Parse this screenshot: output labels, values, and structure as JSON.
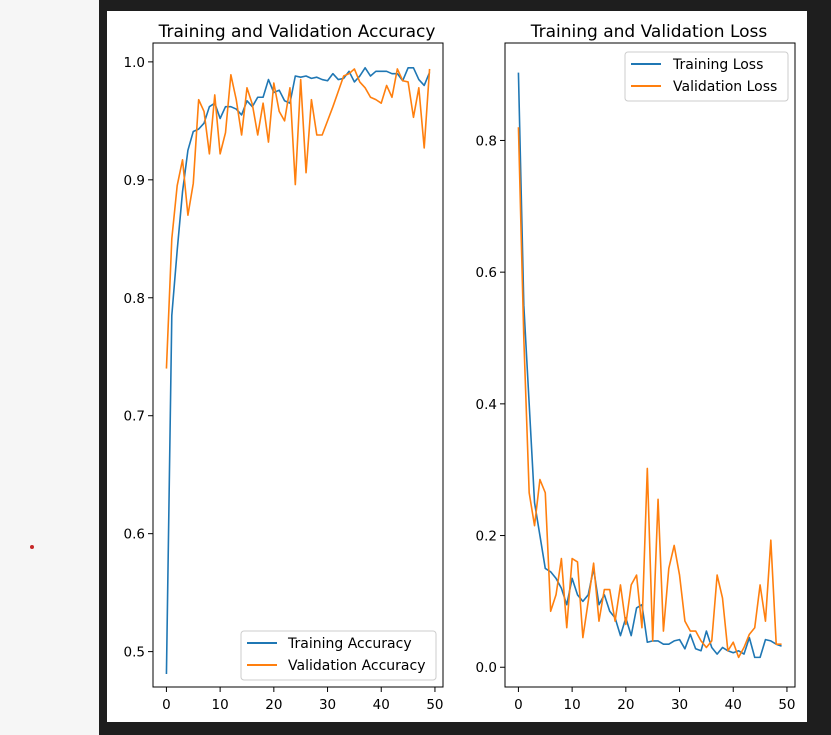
{
  "colors": {
    "training": "#1f77b4",
    "validation": "#ff7f0e",
    "figure_background": "#ffffff",
    "cell_background": "#1e1e1e"
  },
  "chart_data": [
    {
      "type": "line",
      "title": "Training and Validation Accuracy",
      "xlabel": "",
      "ylabel": "",
      "xlim": [
        -2.5,
        51.5
      ],
      "ylim": [
        0.47,
        1.016
      ],
      "xticks": [
        0,
        10,
        20,
        30,
        40,
        50
      ],
      "yticks": [
        0.5,
        0.6,
        0.7,
        0.8,
        0.9,
        1.0
      ],
      "xtick_labels": [
        "0",
        "10",
        "20",
        "30",
        "40",
        "50"
      ],
      "ytick_labels": [
        "0.5",
        "0.6",
        "0.7",
        "0.8",
        "0.9",
        "1.0"
      ],
      "legend_position": "lower-right",
      "grid": false,
      "x": [
        0,
        1,
        2,
        3,
        4,
        5,
        6,
        7,
        8,
        9,
        10,
        11,
        12,
        13,
        14,
        15,
        16,
        17,
        18,
        19,
        20,
        21,
        22,
        23,
        24,
        25,
        26,
        27,
        28,
        29,
        30,
        31,
        32,
        33,
        34,
        35,
        36,
        37,
        38,
        39,
        40,
        41,
        42,
        43,
        44,
        45,
        46,
        47,
        48,
        49
      ],
      "series": [
        {
          "name": "Training Accuracy",
          "color": "#1f77b4",
          "values": [
            0.481,
            0.785,
            0.84,
            0.89,
            0.925,
            0.941,
            0.943,
            0.948,
            0.962,
            0.965,
            0.952,
            0.962,
            0.962,
            0.96,
            0.955,
            0.967,
            0.962,
            0.97,
            0.97,
            0.985,
            0.974,
            0.976,
            0.967,
            0.965,
            0.988,
            0.987,
            0.988,
            0.986,
            0.987,
            0.985,
            0.984,
            0.99,
            0.985,
            0.986,
            0.992,
            0.983,
            0.988,
            0.995,
            0.988,
            0.992,
            0.992,
            0.992,
            0.99,
            0.99,
            0.984,
            0.995,
            0.995,
            0.985,
            0.98,
            0.991
          ]
        },
        {
          "name": "Validation Accuracy",
          "color": "#ff7f0e",
          "values": [
            0.74,
            0.85,
            0.895,
            0.917,
            0.87,
            0.897,
            0.968,
            0.958,
            0.922,
            0.972,
            0.922,
            0.94,
            0.989,
            0.968,
            0.938,
            0.978,
            0.964,
            0.938,
            0.965,
            0.932,
            0.982,
            0.958,
            0.95,
            0.978,
            0.896,
            0.985,
            0.906,
            0.968,
            0.938,
            0.938,
            0.95,
            0.962,
            0.975,
            0.988,
            0.99,
            0.994,
            0.983,
            0.978,
            0.97,
            0.968,
            0.965,
            0.98,
            0.97,
            0.994,
            0.984,
            0.983,
            0.953,
            0.978,
            0.927,
            0.994
          ]
        }
      ]
    },
    {
      "type": "line",
      "title": "Training and Validation Loss",
      "xlabel": "",
      "ylabel": "",
      "xlim": [
        -2.5,
        51.5
      ],
      "ylim": [
        -0.03,
        0.948
      ],
      "xticks": [
        0,
        10,
        20,
        30,
        40,
        50
      ],
      "yticks": [
        0.0,
        0.2,
        0.4,
        0.6,
        0.8
      ],
      "xtick_labels": [
        "0",
        "10",
        "20",
        "30",
        "40",
        "50"
      ],
      "ytick_labels": [
        "0.0",
        "0.2",
        "0.4",
        "0.6",
        "0.8"
      ],
      "legend_position": "upper-right",
      "grid": false,
      "x": [
        0,
        1,
        2,
        3,
        4,
        5,
        6,
        7,
        8,
        9,
        10,
        11,
        12,
        13,
        14,
        15,
        16,
        17,
        18,
        19,
        20,
        21,
        22,
        23,
        24,
        25,
        26,
        27,
        28,
        29,
        30,
        31,
        32,
        33,
        34,
        35,
        36,
        37,
        38,
        39,
        40,
        41,
        42,
        43,
        44,
        45,
        46,
        47,
        48,
        49
      ],
      "series": [
        {
          "name": "Training Loss",
          "color": "#1f77b4",
          "values": [
            0.903,
            0.55,
            0.4,
            0.25,
            0.2,
            0.15,
            0.145,
            0.135,
            0.12,
            0.095,
            0.135,
            0.11,
            0.1,
            0.11,
            0.15,
            0.095,
            0.11,
            0.085,
            0.075,
            0.048,
            0.075,
            0.048,
            0.09,
            0.095,
            0.038,
            0.04,
            0.04,
            0.035,
            0.035,
            0.04,
            0.042,
            0.028,
            0.05,
            0.028,
            0.025,
            0.055,
            0.03,
            0.02,
            0.03,
            0.025,
            0.022,
            0.025,
            0.02,
            0.045,
            0.015,
            0.015,
            0.042,
            0.04,
            0.035,
            0.032
          ]
        },
        {
          "name": "Validation Loss",
          "color": "#ff7f0e",
          "values": [
            0.82,
            0.5,
            0.265,
            0.215,
            0.285,
            0.265,
            0.085,
            0.11,
            0.165,
            0.06,
            0.165,
            0.16,
            0.045,
            0.1,
            0.158,
            0.07,
            0.118,
            0.118,
            0.07,
            0.125,
            0.065,
            0.125,
            0.14,
            0.06,
            0.302,
            0.04,
            0.255,
            0.055,
            0.15,
            0.185,
            0.14,
            0.07,
            0.055,
            0.055,
            0.04,
            0.03,
            0.04,
            0.14,
            0.105,
            0.025,
            0.038,
            0.015,
            0.03,
            0.05,
            0.06,
            0.125,
            0.07,
            0.193,
            0.035,
            0.035
          ]
        }
      ]
    }
  ]
}
